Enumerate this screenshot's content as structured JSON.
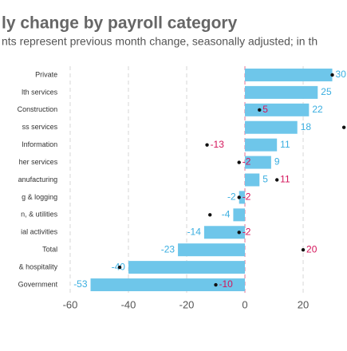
{
  "chart_data": {
    "type": "bar",
    "title": "ly change by payroll category",
    "subtitle": "nts represent previous month change, seasonally adjusted; in th",
    "categories": [
      "Private",
      "lth services",
      "Construction",
      "ss services",
      "Information",
      "her services",
      "anufacturing",
      "g & logging",
      "n, & utilities",
      "ial activities",
      "Total",
      "& hospitality",
      "Government"
    ],
    "series": [
      {
        "name": "current",
        "color": "#6ec6ea",
        "label_color": "#3aaee0",
        "values": [
          30,
          25,
          22,
          18,
          11,
          9,
          5,
          -2,
          -4,
          -14,
          -23,
          -40,
          -53
        ]
      },
      {
        "name": "previous",
        "color": "#111111",
        "label_color": "#d4145a",
        "values": [
          30,
          null,
          5,
          34,
          -13,
          -2,
          11,
          -2,
          -12,
          -2,
          20,
          -43,
          -10
        ],
        "value_labels": [
          null,
          null,
          "5",
          null,
          "-13",
          "-2",
          "11",
          "-2",
          null,
          "-2",
          "20",
          null,
          "-10"
        ]
      }
    ],
    "xlim": [
      -63.5,
      35
    ],
    "xticks": [
      -60,
      -40,
      -20,
      0,
      20
    ],
    "grid": true
  }
}
